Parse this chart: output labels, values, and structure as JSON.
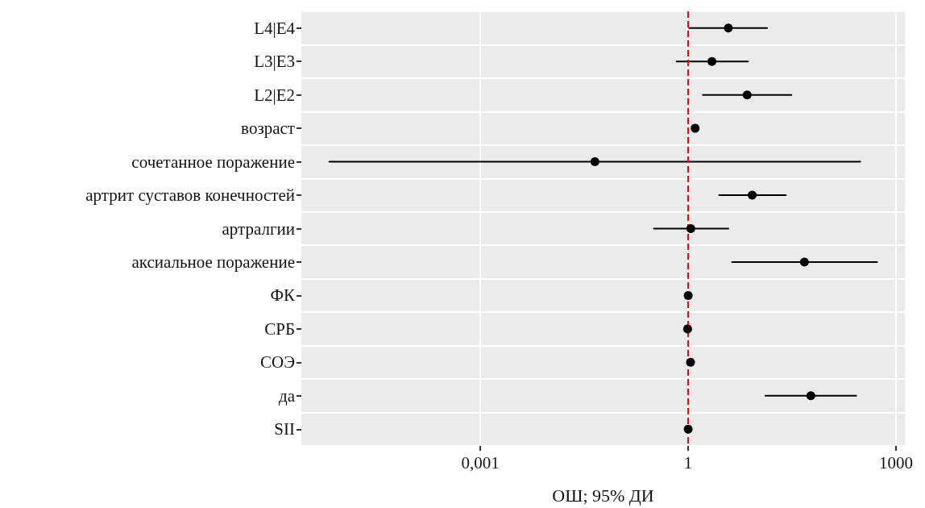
{
  "chart_data": {
    "type": "scatter",
    "orientation": "horizontal",
    "xlabel": "ОШ; 95% ДИ",
    "categories": [
      "L4|E4",
      "L3|E3",
      "L2|E2",
      "возраст",
      "сочетанное поражение",
      "артрит суставов конечностей",
      "артралгии",
      "аксиальное поражение",
      "ФК",
      "СРБ",
      "СОЭ",
      "да",
      "SII"
    ],
    "values": [
      3.8,
      2.2,
      7.1,
      1.26,
      0.045,
      8.4,
      1.09,
      47.6,
      1.0,
      0.98,
      1.08,
      59,
      1.0
    ],
    "errors": [
      [
        1.03,
        13.8
      ],
      [
        0.68,
        7.3
      ],
      [
        1.63,
        31
      ],
      null,
      [
        6.6e-06,
        305
      ],
      [
        2.8,
        25.7
      ],
      [
        0.32,
        3.8
      ],
      [
        4.3,
        535
      ],
      null,
      null,
      null,
      [
        13,
        267
      ],
      null
    ],
    "color": "#000000",
    "marker": "circle",
    "log": "x",
    "xlim": [
      2.6e-06,
      1343
    ],
    "xticks": [
      {
        "value": 0.001,
        "label": "0,001"
      },
      1,
      1000
    ],
    "grid": true,
    "ref_lines": [
      {
        "axis": "x",
        "value": 1,
        "color": "#ff0000",
        "line_style": "dashed"
      }
    ]
  }
}
